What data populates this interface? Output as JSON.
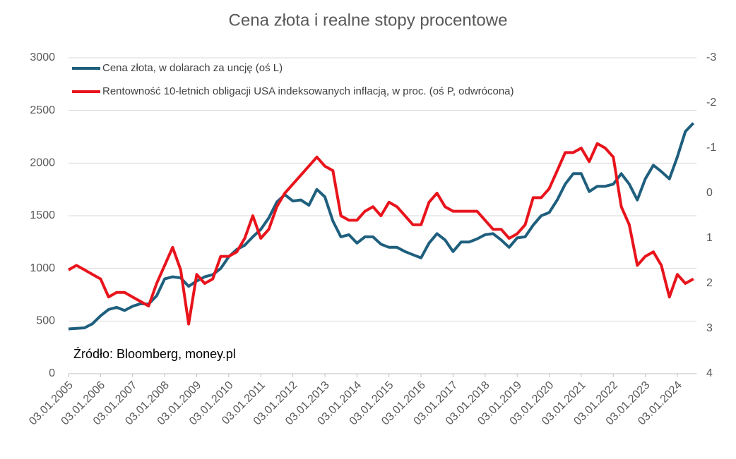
{
  "chart_data": {
    "type": "line",
    "title": "Cena złota i realne stopy procentowe",
    "annotation": "Źródło: Bloomberg, money.pl",
    "x": [
      2005,
      2005.25,
      2005.5,
      2005.75,
      2006,
      2006.25,
      2006.5,
      2006.75,
      2007,
      2007.25,
      2007.5,
      2007.75,
      2008,
      2008.25,
      2008.5,
      2008.75,
      2009,
      2009.25,
      2009.5,
      2009.75,
      2010,
      2010.25,
      2010.5,
      2010.75,
      2011,
      2011.25,
      2011.5,
      2011.75,
      2012,
      2012.25,
      2012.5,
      2012.75,
      2013,
      2013.25,
      2013.5,
      2013.75,
      2014,
      2014.25,
      2014.5,
      2014.75,
      2015,
      2015.25,
      2015.5,
      2015.75,
      2016,
      2016.25,
      2016.5,
      2016.75,
      2017,
      2017.25,
      2017.5,
      2017.75,
      2018,
      2018.25,
      2018.5,
      2018.75,
      2019,
      2019.25,
      2019.5,
      2019.75,
      2020,
      2020.25,
      2020.5,
      2020.75,
      2021,
      2021.25,
      2021.5,
      2021.75,
      2022,
      2022.25,
      2022.5,
      2022.75,
      2023,
      2023.25,
      2023.5,
      2023.75,
      2024,
      2024.25,
      2024.5
    ],
    "series": [
      {
        "name": "Cena złota, w dolarach za uncję (oś L)",
        "color": "#1f5f7e",
        "axis": "y",
        "values": [
          425,
          430,
          435,
          475,
          550,
          610,
          630,
          600,
          640,
          665,
          660,
          740,
          900,
          920,
          910,
          830,
          880,
          920,
          940,
          1000,
          1110,
          1180,
          1220,
          1300,
          1370,
          1480,
          1630,
          1700,
          1640,
          1650,
          1600,
          1750,
          1680,
          1450,
          1300,
          1320,
          1240,
          1300,
          1300,
          1230,
          1200,
          1200,
          1160,
          1130,
          1100,
          1240,
          1330,
          1270,
          1160,
          1250,
          1250,
          1280,
          1320,
          1330,
          1270,
          1200,
          1290,
          1300,
          1410,
          1500,
          1530,
          1650,
          1800,
          1900,
          1900,
          1730,
          1780,
          1780,
          1800,
          1900,
          1800,
          1650,
          1850,
          1980,
          1920,
          1850,
          2060,
          2300,
          2380
        ]
      },
      {
        "name": "Rentowność 10-letnich obligacji USA indeksowanych inflacją, w proc. (oś P, odwrócona)",
        "color": "#e8141c",
        "axis": "y2",
        "values": [
          1.7,
          1.6,
          1.7,
          1.8,
          1.9,
          2.3,
          2.2,
          2.2,
          2.3,
          2.4,
          2.5,
          2.0,
          1.6,
          1.2,
          1.7,
          2.9,
          1.8,
          2.0,
          1.9,
          1.4,
          1.4,
          1.3,
          1.0,
          0.5,
          1.0,
          0.8,
          0.3,
          0.0,
          -0.2,
          -0.4,
          -0.6,
          -0.8,
          -0.6,
          -0.5,
          0.5,
          0.6,
          0.6,
          0.4,
          0.3,
          0.5,
          0.2,
          0.3,
          0.5,
          0.7,
          0.7,
          0.2,
          0.0,
          0.3,
          0.4,
          0.4,
          0.4,
          0.4,
          0.6,
          0.8,
          0.8,
          1.0,
          0.9,
          0.7,
          0.1,
          0.1,
          -0.1,
          -0.5,
          -0.9,
          -0.9,
          -1.0,
          -0.7,
          -1.1,
          -1.0,
          -0.8,
          0.3,
          0.7,
          1.6,
          1.4,
          1.3,
          1.6,
          2.3,
          1.8,
          2.0,
          1.9
        ]
      }
    ],
    "xlim": [
      2005,
      2024.6
    ],
    "xticks": [
      {
        "value": 2005,
        "label": "03.01.2005"
      },
      {
        "value": 2006,
        "label": "03.01.2006"
      },
      {
        "value": 2007,
        "label": "03.01.2007"
      },
      {
        "value": 2008,
        "label": "03.01.2008"
      },
      {
        "value": 2009,
        "label": "03.01.2009"
      },
      {
        "value": 2010,
        "label": "03.01.2010"
      },
      {
        "value": 2011,
        "label": "03.01.2011"
      },
      {
        "value": 2012,
        "label": "03.01.2012"
      },
      {
        "value": 2013,
        "label": "03.01.2013"
      },
      {
        "value": 2014,
        "label": "03.01.2014"
      },
      {
        "value": 2015,
        "label": "03.01.2015"
      },
      {
        "value": 2016,
        "label": "03.01.2016"
      },
      {
        "value": 2017,
        "label": "03.01.2017"
      },
      {
        "value": 2018,
        "label": "03.01.2018"
      },
      {
        "value": 2019,
        "label": "03.01.2019"
      },
      {
        "value": 2020,
        "label": "03.01.2020"
      },
      {
        "value": 2021,
        "label": "03.01.2021"
      },
      {
        "value": 2022,
        "label": "03.01.2022"
      },
      {
        "value": 2023,
        "label": "03.01.2023"
      },
      {
        "value": 2024,
        "label": "03.01.2024"
      }
    ],
    "ylim": [
      0,
      3000
    ],
    "yticks": [
      0,
      500,
      1000,
      1500,
      2000,
      2500,
      3000
    ],
    "y2lim": [
      -3,
      4
    ],
    "y2ticks": [
      -3,
      -2,
      -1,
      0,
      1,
      2,
      3,
      4
    ],
    "y2_reversed": true,
    "grid": true,
    "legend": "top-left"
  }
}
